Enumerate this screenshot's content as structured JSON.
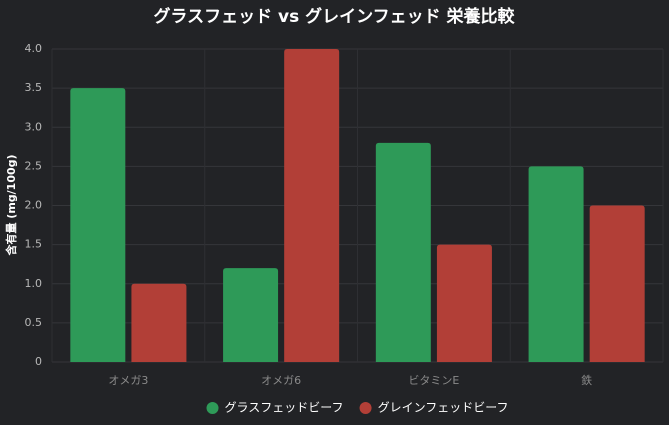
{
  "chart_data": {
    "type": "bar",
    "title": "グラスフェッド vs グレインフェッド 栄養比較",
    "ylabel": "含有量 (mg/100g)",
    "categories": [
      "オメガ3",
      "オメガ6",
      "ビタミンE",
      "鉄"
    ],
    "series": [
      {
        "name": "グラスフェッドビーフ",
        "color": "#2e9a58",
        "values": [
          3.5,
          1.2,
          2.8,
          2.5
        ]
      },
      {
        "name": "グレインフェッドビーフ",
        "color": "#b23f37",
        "values": [
          1.0,
          4.0,
          1.5,
          2.0
        ]
      }
    ],
    "ylim": [
      0,
      4
    ],
    "yticks": [
      0,
      0.5,
      {
        "value": 1,
        "label": "1.0"
      },
      1.5,
      {
        "value": 2,
        "label": "2.0"
      },
      2.5,
      {
        "value": 3,
        "label": "3.0"
      },
      3.5,
      {
        "value": 4,
        "label": "4.0"
      }
    ],
    "grid": true,
    "legend": "bottom"
  }
}
